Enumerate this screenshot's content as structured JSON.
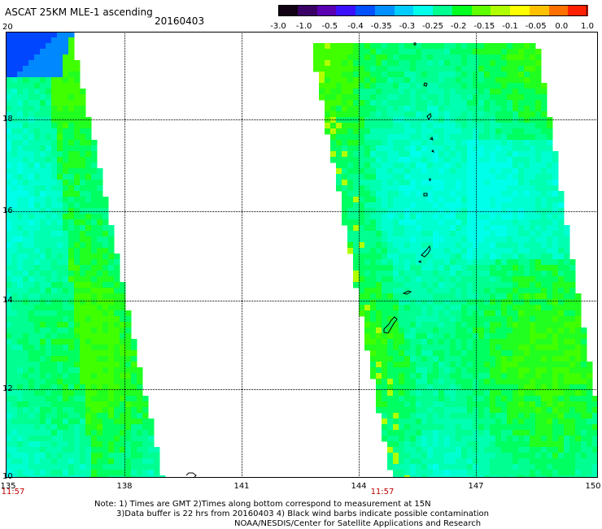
{
  "header": {
    "title": "ASCAT 25KM MLE-1 ascending",
    "date": "20160403"
  },
  "colorbar": {
    "labels": [
      "-3.0",
      "-1.0",
      "-0.5",
      "-0.4",
      "-0.35",
      "-0.3",
      "-0.25",
      "-0.2",
      "-0.15",
      "-0.1",
      "-0.05",
      "0.0",
      "1.0"
    ],
    "colors": [
      "#120014",
      "#3a0066",
      "#5a00b0",
      "#3a10ff",
      "#0050ff",
      "#0090ff",
      "#00ccff",
      "#00ffea",
      "#00ff90",
      "#00ff20",
      "#60ff00",
      "#b0ff00",
      "#ffff00",
      "#ffc000",
      "#ff7000",
      "#ff2000"
    ]
  },
  "map": {
    "x_ticks": [
      "135",
      "138",
      "141",
      "144",
      "147",
      "150"
    ],
    "y_ticks": [
      "20",
      "18",
      "16",
      "14",
      "12",
      "10"
    ],
    "time_labels": [
      "11:57",
      "11:57"
    ]
  },
  "notes": [
    "Note: 1) Times are GMT 2)Times along bottom correspond to measurement at 15N",
    "3)Data buffer is 22 hrs from 20160403 4) Black wind barbs indicate possible contamination",
    "NOAA/NESDIS/Center for Satellite Applications and Research"
  ]
}
